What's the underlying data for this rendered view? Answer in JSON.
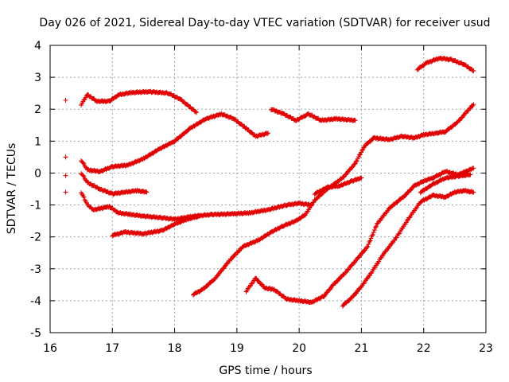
{
  "chart_data": {
    "type": "scatter",
    "title": "Day 026 of 2021, Sidereal Day-to-day VTEC variation (SDTVAR) for receiver usud",
    "xlabel": "GPS time / hours",
    "ylabel": "SDTVAR / TECUs",
    "xlim": [
      16,
      23
    ],
    "ylim": [
      -5,
      4
    ],
    "xticks": [
      "16",
      "17",
      "18",
      "19",
      "20",
      "21",
      "22",
      "23"
    ],
    "yticks": [
      "-5",
      "-4",
      "-3",
      "-2",
      "-1",
      "0",
      "1",
      "2",
      "3",
      "4"
    ],
    "grid": true,
    "marker": "+",
    "color": "#e00000",
    "tracks": [
      [
        [
          16.25,
          2.28
        ]
      ],
      [
        [
          16.25,
          0.5
        ]
      ],
      [
        [
          16.25,
          -0.08
        ]
      ],
      [
        [
          16.25,
          -0.6
        ]
      ],
      [
        [
          16.5,
          2.15
        ],
        [
          16.6,
          2.45
        ],
        [
          16.75,
          2.25
        ],
        [
          16.95,
          2.25
        ],
        [
          17.1,
          2.45
        ],
        [
          17.3,
          2.52
        ],
        [
          17.6,
          2.55
        ],
        [
          17.9,
          2.5
        ],
        [
          18.1,
          2.3
        ],
        [
          18.35,
          1.9
        ]
      ],
      [
        [
          16.5,
          0.4
        ],
        [
          16.6,
          0.1
        ],
        [
          16.8,
          0.05
        ],
        [
          17.0,
          0.2
        ],
        [
          17.25,
          0.25
        ],
        [
          17.5,
          0.45
        ],
        [
          17.75,
          0.75
        ],
        [
          18.0,
          1.0
        ],
        [
          18.25,
          1.4
        ],
        [
          18.5,
          1.7
        ],
        [
          18.75,
          1.85
        ],
        [
          18.95,
          1.7
        ],
        [
          19.15,
          1.4
        ],
        [
          19.3,
          1.15
        ],
        [
          19.5,
          1.25
        ]
      ],
      [
        [
          16.5,
          0.0
        ],
        [
          16.6,
          -0.3
        ],
        [
          16.8,
          -0.5
        ],
        [
          17.0,
          -0.65
        ],
        [
          17.2,
          -0.6
        ],
        [
          17.4,
          -0.55
        ],
        [
          17.55,
          -0.6
        ]
      ],
      [
        [
          16.5,
          -0.6
        ],
        [
          16.6,
          -1.0
        ],
        [
          16.7,
          -1.15
        ],
        [
          16.95,
          -1.05
        ],
        [
          17.1,
          -1.25
        ],
        [
          17.3,
          -1.3
        ],
        [
          17.5,
          -1.35
        ],
        [
          17.8,
          -1.4
        ],
        [
          18.0,
          -1.45
        ],
        [
          18.3,
          -1.35
        ],
        [
          18.6,
          -1.3
        ],
        [
          18.9,
          -1.28
        ],
        [
          19.2,
          -1.25
        ],
        [
          19.5,
          -1.15
        ],
        [
          19.8,
          -1.0
        ],
        [
          20.0,
          -0.95
        ],
        [
          20.2,
          -1.0
        ]
      ],
      [
        [
          17.0,
          -1.95
        ],
        [
          17.2,
          -1.85
        ],
        [
          17.5,
          -1.9
        ],
        [
          17.8,
          -1.8
        ],
        [
          18.0,
          -1.6
        ],
        [
          18.2,
          -1.45
        ],
        [
          18.4,
          -1.35
        ]
      ],
      [
        [
          19.55,
          2.0
        ],
        [
          19.75,
          1.85
        ],
        [
          19.95,
          1.65
        ],
        [
          20.15,
          1.85
        ],
        [
          20.35,
          1.65
        ],
        [
          20.6,
          1.7
        ],
        [
          20.9,
          1.65
        ]
      ],
      [
        [
          18.3,
          -3.8
        ],
        [
          18.45,
          -3.65
        ],
        [
          18.65,
          -3.3
        ],
        [
          18.9,
          -2.7
        ],
        [
          19.1,
          -2.3
        ],
        [
          19.35,
          -2.1
        ],
        [
          19.55,
          -1.85
        ],
        [
          19.75,
          -1.65
        ],
        [
          19.95,
          -1.5
        ],
        [
          20.1,
          -1.3
        ],
        [
          20.25,
          -0.85
        ],
        [
          20.45,
          -0.5
        ],
        [
          20.7,
          -0.15
        ],
        [
          20.9,
          0.3
        ],
        [
          21.05,
          0.85
        ],
        [
          21.2,
          1.1
        ],
        [
          21.45,
          1.05
        ],
        [
          21.65,
          1.15
        ],
        [
          21.85,
          1.1
        ],
        [
          22.0,
          1.2
        ],
        [
          22.2,
          1.25
        ],
        [
          22.35,
          1.3
        ],
        [
          22.55,
          1.6
        ],
        [
          22.75,
          2.05
        ],
        [
          22.8,
          2.15
        ]
      ],
      [
        [
          19.15,
          -3.7
        ],
        [
          19.3,
          -3.3
        ],
        [
          19.45,
          -3.6
        ],
        [
          19.6,
          -3.65
        ],
        [
          19.8,
          -3.95
        ],
        [
          20.0,
          -4.0
        ],
        [
          20.2,
          -4.05
        ],
        [
          20.4,
          -3.85
        ],
        [
          20.55,
          -3.5
        ],
        [
          20.75,
          -3.1
        ],
        [
          20.95,
          -2.65
        ],
        [
          21.1,
          -2.3
        ],
        [
          21.25,
          -1.6
        ],
        [
          21.45,
          -1.1
        ],
        [
          21.7,
          -0.7
        ],
        [
          21.85,
          -0.4
        ],
        [
          22.0,
          -0.25
        ],
        [
          22.15,
          -0.15
        ],
        [
          22.35,
          0.05
        ],
        [
          22.55,
          -0.05
        ],
        [
          22.8,
          0.15
        ]
      ],
      [
        [
          20.25,
          -0.65
        ],
        [
          20.45,
          -0.45
        ],
        [
          20.65,
          -0.4
        ],
        [
          20.85,
          -0.25
        ],
        [
          21.0,
          -0.15
        ]
      ],
      [
        [
          20.7,
          -4.15
        ],
        [
          20.85,
          -3.9
        ],
        [
          21.0,
          -3.55
        ],
        [
          21.15,
          -3.15
        ],
        [
          21.35,
          -2.55
        ],
        [
          21.55,
          -2.05
        ],
        [
          21.75,
          -1.45
        ],
        [
          21.95,
          -0.9
        ],
        [
          22.15,
          -0.7
        ],
        [
          22.35,
          -0.75
        ],
        [
          22.5,
          -0.6
        ],
        [
          22.65,
          -0.55
        ],
        [
          22.8,
          -0.6
        ]
      ],
      [
        [
          21.95,
          -0.6
        ],
        [
          22.15,
          -0.35
        ],
        [
          22.35,
          -0.15
        ],
        [
          22.55,
          -0.1
        ],
        [
          22.75,
          -0.05
        ]
      ],
      [
        [
          21.9,
          3.25
        ],
        [
          22.05,
          3.45
        ],
        [
          22.25,
          3.6
        ],
        [
          22.45,
          3.55
        ],
        [
          22.65,
          3.4
        ],
        [
          22.8,
          3.2
        ]
      ]
    ]
  }
}
